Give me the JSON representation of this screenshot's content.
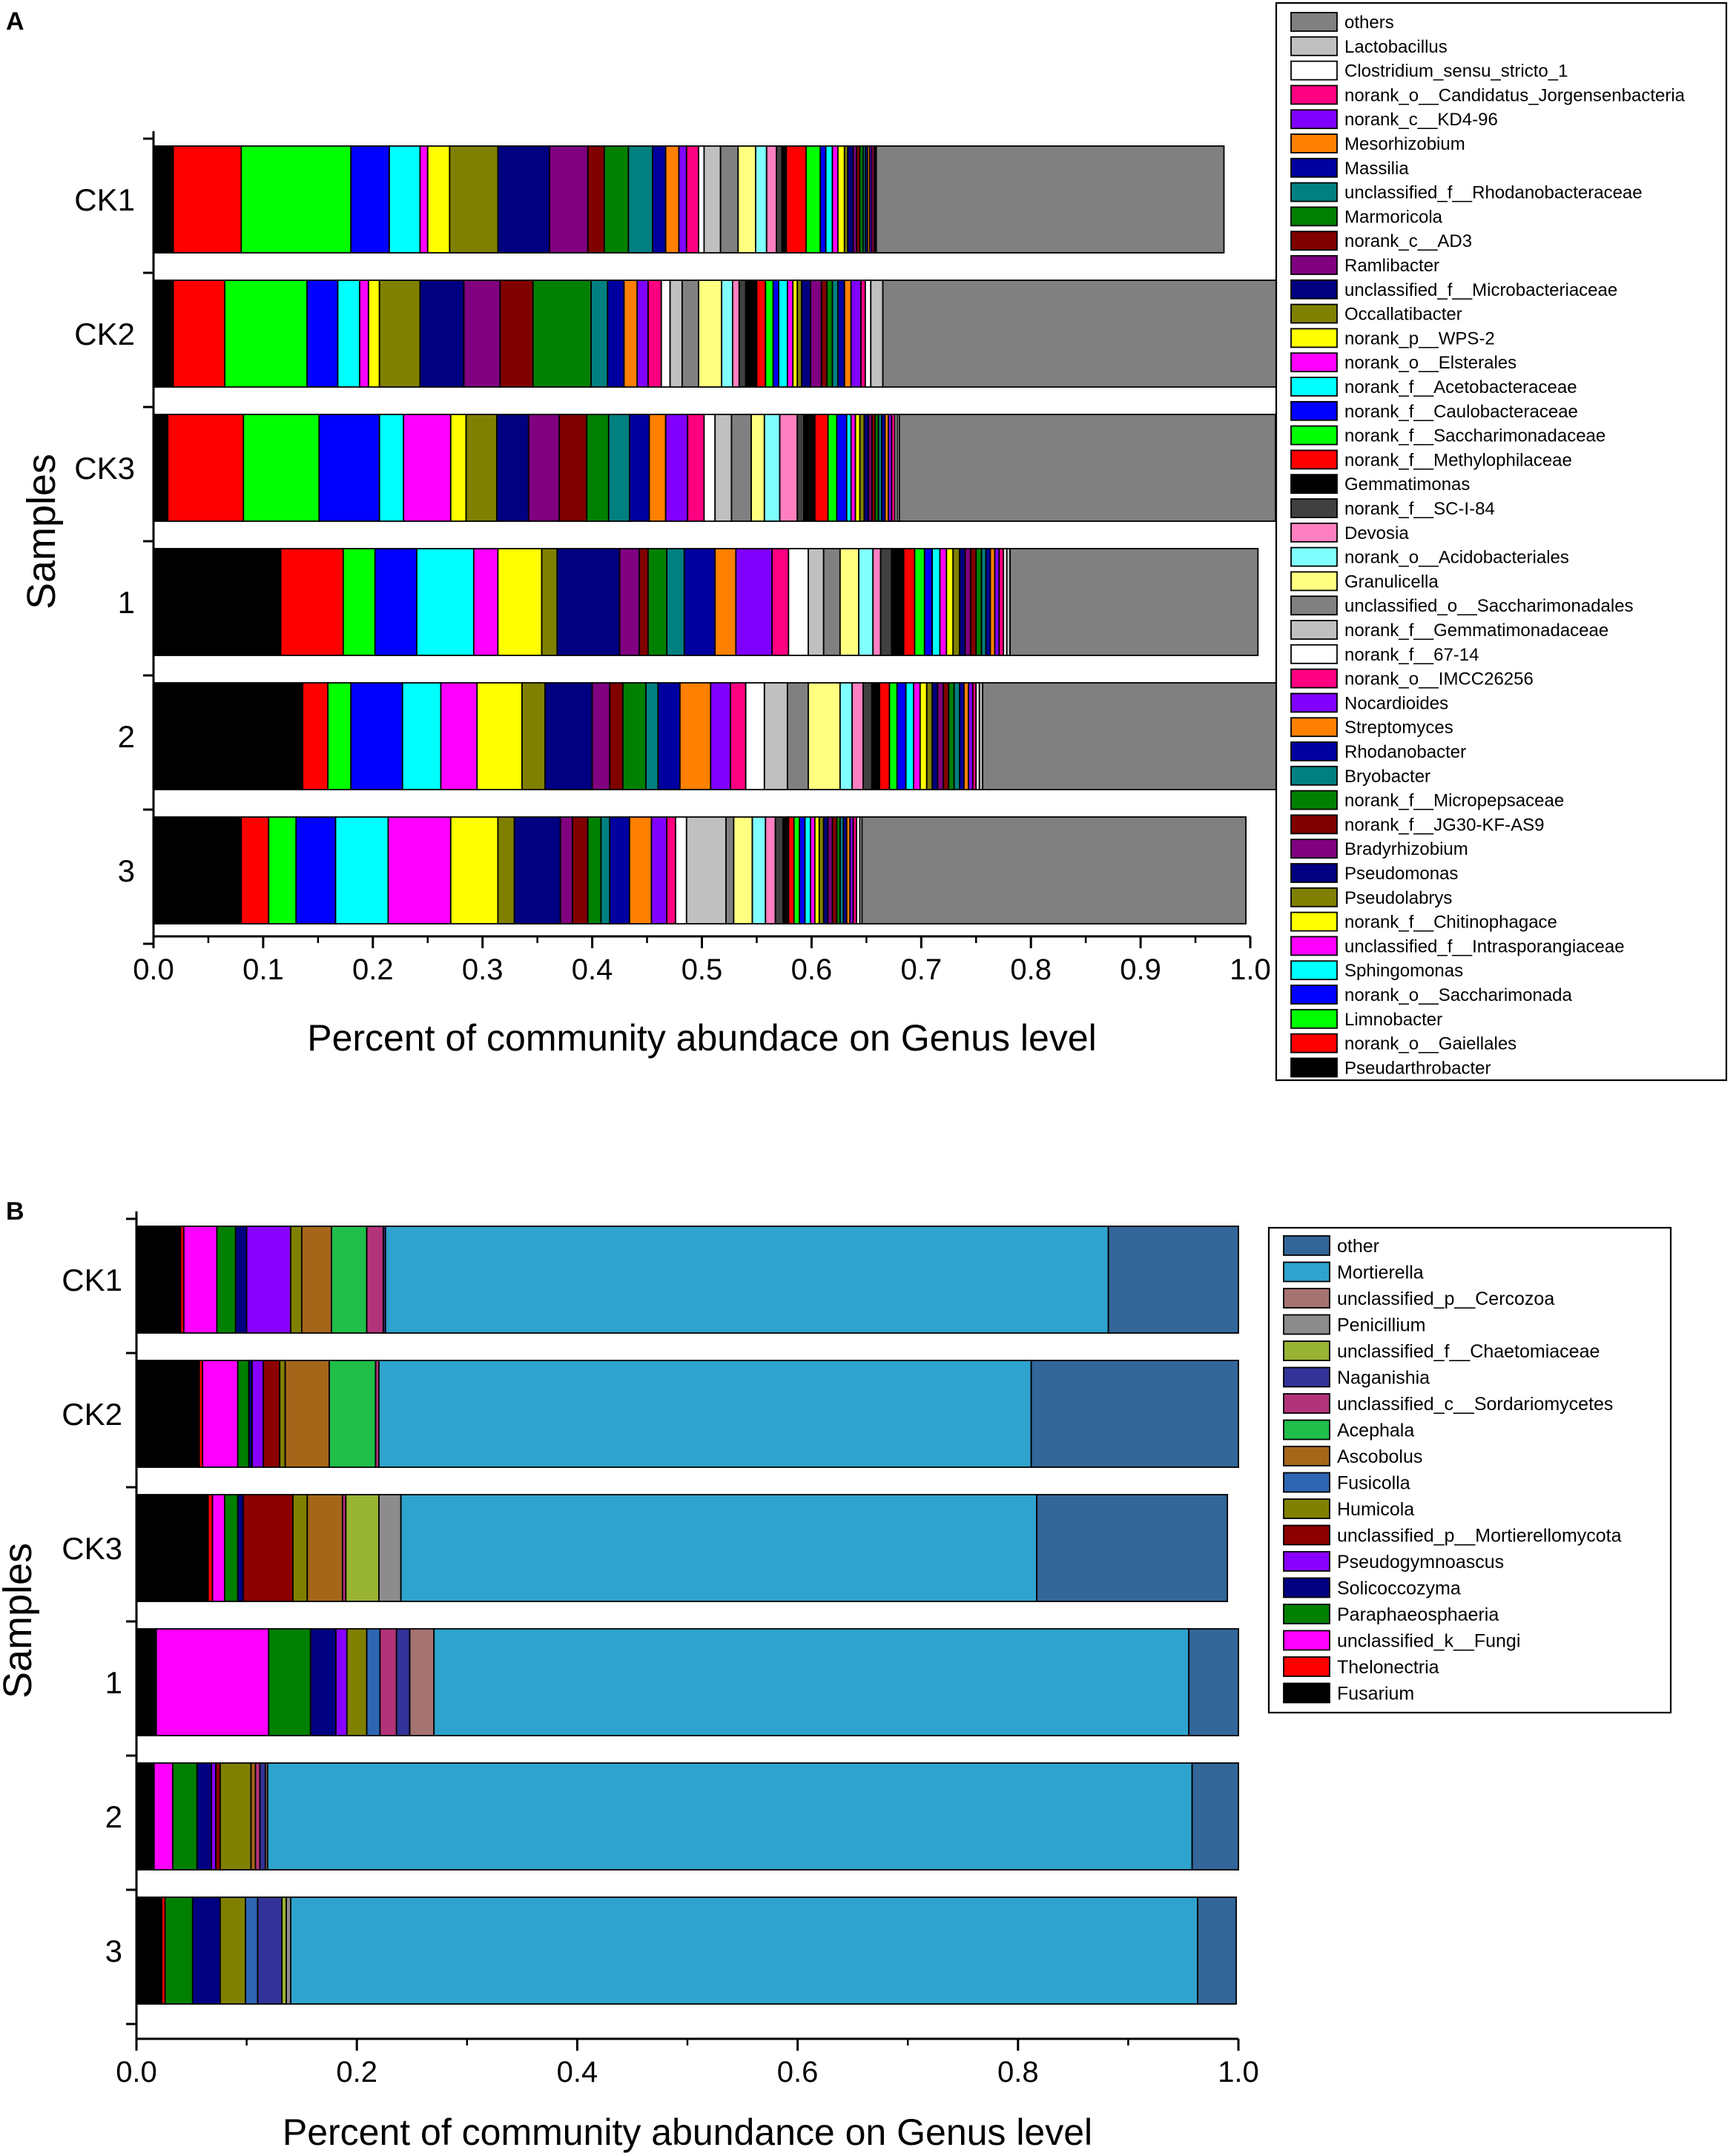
{
  "colors": {
    "others": "#808080",
    "Lactobacillus": "#c0c0c0",
    "Clostridium_sensu_stricto_1": "#ffffff",
    "norank_o__Candidatus_Jorgensenbacteria": "#ff0080",
    "norank_c__KD4-96": "#8000ff",
    "Mesorhizobium": "#ff8000",
    "Massilia": "#0000a0",
    "unclassified_f__Rhodanobacteraceae": "#008080",
    "Marmoricola": "#008000",
    "norank_c__AD3": "#800000",
    "Ramlibacter": "#800080",
    "unclassified_f__Microbacteriaceae": "#000080",
    "Occallatibacter": "#808000",
    "norank_p__WPS-2": "#ffff00",
    "norank_o__Elsterales": "#ff00ff",
    "norank_f__Acetobacteraceae": "#00ffff",
    "norank_f__Caulobacteraceae": "#0000ff",
    "norank_f__Saccharimonadaceae": "#00ff00",
    "norank_f__Methylophilaceae": "#ff0000",
    "Gemmatimonas": "#000000",
    "norank_f__SC-I-84": "#404040",
    "Devosia": "#ff80c0",
    "norank_o__Acidobacteriales": "#80ffff",
    "Granulicella": "#ffff80",
    "unclassified_o__Saccharimonadales": "#808080",
    "norank_f__Gemmatimonadaceae": "#c0c0c0",
    "norank_f__67-14": "#ffffff",
    "norank_o__IMCC26256": "#ff0080",
    "Nocardioides": "#8000ff",
    "Streptomyces": "#ff8000",
    "Rhodanobacter": "#0000a0",
    "Bryobacter": "#008080",
    "norank_f__Micropepsaceae": "#008000",
    "norank_f__JG30-KF-AS9": "#800000",
    "Bradyrhizobium": "#800080",
    "Pseudomonas": "#000080",
    "Pseudolabrys": "#808000",
    "norank_f__Chitinophagace": "#ffff00",
    "unclassified_f__Intrasporangiaceae": "#ff00ff",
    "Sphingomonas": "#00ffff",
    "norank_o__Saccharimonada": "#0000ff",
    "Limnobacter": "#00ff00",
    "norank_o__Gaiellales": "#ff0000",
    "Pseudarthrobacter": "#000000",
    "other": "#336699",
    "Mortierella": "#2ea3cd",
    "unclassified_p__Cercozoa": "#a67373",
    "Penicillium": "#8c8c8c",
    "unclassified_f__Chaetomiaceae": "#99b333",
    "Naganishia": "#333399",
    "unclassified_c__Sordariomycetes": "#b3337a",
    "Acephala": "#1fbf4a",
    "Ascobolus": "#a6661a",
    "Fusicolla": "#2e66b3",
    "Humicola": "#808000",
    "unclassified_p__Mortierellomycota": "#8c0000",
    "Pseudogymnoascus": "#8800ff",
    "Solicoccozyma": "#000080",
    "Paraphaeosphaeria": "#008000",
    "unclassified_k__Fungi": "#ff00ff",
    "Thelonectria": "#ff0000",
    "Fusarium": "#000000"
  },
  "chart_data": [
    {
      "type": "stacked_horizontal_bar",
      "panel_label": "A",
      "xlabel": "Percent of community abundace on Genus level",
      "ylabel": "Samples",
      "xlim": [
        0.0,
        1.0
      ],
      "x_ticks": [
        "0.0",
        "0.1",
        "0.2",
        "0.3",
        "0.4",
        "0.5",
        "0.6",
        "0.7",
        "0.8",
        "0.9",
        "1.0"
      ],
      "samples": [
        "CK1",
        "CK2",
        "CK3",
        "1",
        "2",
        "3"
      ],
      "legend": [
        "others",
        "Lactobacillus",
        "Clostridium_sensu_stricto_1",
        "norank_o__Candidatus_Jorgensenbacteria",
        "norank_c__KD4-96",
        "Mesorhizobium",
        "Massilia",
        "unclassified_f__Rhodanobacteraceae",
        "Marmoricola",
        "norank_c__AD3",
        "Ramlibacter",
        "unclassified_f__Microbacteriaceae",
        "Occallatibacter",
        "norank_p__WPS-2",
        "norank_o__Elsterales",
        "norank_f__Acetobacteraceae",
        "norank_f__Caulobacteraceae",
        "norank_f__Saccharimonadaceae",
        "norank_f__Methylophilaceae",
        "Gemmatimonas",
        "norank_f__SC-I-84",
        "Devosia",
        "norank_o__Acidobacteriales",
        "Granulicella",
        "unclassified_o__Saccharimonadales",
        "norank_f__Gemmatimonadaceae",
        "norank_f__67-14",
        "norank_o__IMCC26256",
        "Nocardioides",
        "Streptomyces",
        "Rhodanobacter",
        "Bryobacter",
        "norank_f__Micropepsaceae",
        "norank_f__JG30-KF-AS9",
        "Bradyrhizobium",
        "Pseudomonas",
        "Pseudolabrys",
        "norank_f__Chitinophagace",
        "unclassified_f__Intrasporangiaceae",
        "Sphingomonas",
        "norank_o__Saccharimonada",
        "Limnobacter",
        "norank_o__Gaiellales",
        "Pseudarthrobacter"
      ],
      "stack_order": [
        "Pseudarthrobacter",
        "norank_o__Gaiellales",
        "Limnobacter",
        "norank_o__Saccharimonada",
        "Sphingomonas",
        "unclassified_f__Intrasporangiaceae",
        "norank_f__Chitinophagace",
        "Pseudolabrys",
        "Pseudomonas",
        "Bradyrhizobium",
        "norank_f__JG30-KF-AS9",
        "norank_f__Micropepsaceae",
        "Bryobacter",
        "Rhodanobacter",
        "Streptomyces",
        "Nocardioides",
        "norank_o__IMCC26256",
        "norank_f__67-14",
        "norank_f__Gemmatimonadaceae",
        "unclassified_o__Saccharimonadales",
        "Granulicella",
        "norank_o__Acidobacteriales",
        "Devosia",
        "norank_f__SC-I-84",
        "Gemmatimonas",
        "norank_f__Methylophilaceae",
        "norank_f__Saccharimonadaceae",
        "norank_f__Caulobacteraceae",
        "norank_f__Acetobacteraceae",
        "norank_o__Elsterales",
        "norank_p__WPS-2",
        "Occallatibacter",
        "unclassified_f__Microbacteriaceae",
        "Ramlibacter",
        "norank_c__AD3",
        "Marmoricola",
        "unclassified_f__Rhodanobacteraceae",
        "Massilia",
        "Mesorhizobium",
        "norank_c__KD4-96",
        "norank_o__Candidatus_Jorgensenbacteria",
        "Clostridium_sensu_stricto_1",
        "Lactobacillus",
        "others"
      ],
      "values": {
        "CK1": [
          0.018,
          0.062,
          0.1,
          0.035,
          0.028,
          0.007,
          0.02,
          0.044,
          0.047,
          0.035,
          0.015,
          0.022,
          0.022,
          0.012,
          0.012,
          0.007,
          0.011,
          0.005,
          0.015,
          0.016,
          0.016,
          0.01,
          0.009,
          0.005,
          0.004,
          0.018,
          0.013,
          0.005,
          0.006,
          0.005,
          0.006,
          0.003,
          0.005,
          0.003,
          0.003,
          0.003,
          0.002,
          0.002,
          0.002,
          0.002,
          0.002,
          0.001,
          0.001,
          0.317
        ],
        "CK2": [
          0.018,
          0.047,
          0.075,
          0.028,
          0.02,
          0.008,
          0.01,
          0.037,
          0.04,
          0.033,
          0.03,
          0.053,
          0.015,
          0.015,
          0.012,
          0.01,
          0.012,
          0.008,
          0.011,
          0.015,
          0.021,
          0.01,
          0.006,
          0.006,
          0.01,
          0.008,
          0.007,
          0.005,
          0.008,
          0.005,
          0.004,
          0.004,
          0.008,
          0.01,
          0.005,
          0.005,
          0.005,
          0.006,
          0.006,
          0.009,
          0.004,
          0.005,
          0.011,
          0.371
        ],
        "CK3": [
          0.013,
          0.069,
          0.069,
          0.055,
          0.022,
          0.043,
          0.014,
          0.028,
          0.029,
          0.028,
          0.025,
          0.02,
          0.019,
          0.018,
          0.015,
          0.02,
          0.015,
          0.01,
          0.015,
          0.018,
          0.012,
          0.014,
          0.016,
          0.006,
          0.01,
          0.012,
          0.008,
          0.009,
          0.004,
          0.004,
          0.004,
          0.004,
          0.004,
          0.003,
          0.003,
          0.003,
          0.003,
          0.003,
          0.003,
          0.003,
          0.003,
          0.002,
          0.002,
          0.343
        ],
        "1": [
          0.116,
          0.057,
          0.029,
          0.038,
          0.052,
          0.022,
          0.04,
          0.014,
          0.057,
          0.018,
          0.008,
          0.017,
          0.016,
          0.028,
          0.019,
          0.033,
          0.015,
          0.018,
          0.014,
          0.015,
          0.017,
          0.013,
          0.007,
          0.01,
          0.011,
          0.01,
          0.009,
          0.007,
          0.007,
          0.006,
          0.006,
          0.006,
          0.005,
          0.005,
          0.005,
          0.005,
          0.004,
          0.004,
          0.004,
          0.004,
          0.004,
          0.003,
          0.003,
          0.226
        ],
        "2": [
          0.136,
          0.023,
          0.021,
          0.047,
          0.035,
          0.033,
          0.041,
          0.021,
          0.043,
          0.016,
          0.012,
          0.021,
          0.011,
          0.02,
          0.028,
          0.018,
          0.014,
          0.017,
          0.021,
          0.019,
          0.029,
          0.011,
          0.01,
          0.008,
          0.007,
          0.009,
          0.007,
          0.008,
          0.007,
          0.006,
          0.006,
          0.005,
          0.005,
          0.005,
          0.005,
          0.005,
          0.005,
          0.004,
          0.004,
          0.004,
          0.003,
          0.003,
          0.003,
          0.281
        ],
        "3": [
          0.08,
          0.025,
          0.025,
          0.036,
          0.048,
          0.057,
          0.043,
          0.015,
          0.042,
          0.011,
          0.014,
          0.012,
          0.008,
          0.018,
          0.02,
          0.014,
          0.008,
          0.01,
          0.036,
          0.007,
          0.017,
          0.012,
          0.009,
          0.007,
          0.005,
          0.005,
          0.005,
          0.005,
          0.005,
          0.004,
          0.004,
          0.004,
          0.004,
          0.004,
          0.004,
          0.003,
          0.003,
          0.003,
          0.003,
          0.003,
          0.003,
          0.003,
          0.002,
          0.35
        ]
      }
    },
    {
      "type": "stacked_horizontal_bar",
      "panel_label": "B",
      "xlabel": "Percent of community abundance on Genus level",
      "ylabel": "Samples",
      "xlim": [
        0.0,
        1.0
      ],
      "x_ticks": [
        "0.0",
        "0.2",
        "0.4",
        "0.6",
        "0.8",
        "1.0"
      ],
      "samples": [
        "CK1",
        "CK2",
        "CK3",
        "1",
        "2",
        "3"
      ],
      "legend": [
        "other",
        "Mortierella",
        "unclassified_p__Cercozoa",
        "Penicillium",
        "unclassified_f__Chaetomiaceae",
        "Naganishia",
        "unclassified_c__Sordariomycetes",
        "Acephala",
        "Ascobolus",
        "Fusicolla",
        "Humicola",
        "unclassified_p__Mortierellomycota",
        "Pseudogymnoascus",
        "Solicoccozyma",
        "Paraphaeosphaeria",
        "unclassified_k__Fungi",
        "Thelonectria",
        "Fusarium"
      ],
      "stack_order": [
        "Fusarium",
        "Thelonectria",
        "unclassified_k__Fungi",
        "Paraphaeosphaeria",
        "Solicoccozyma",
        "Pseudogymnoascus",
        "unclassified_p__Mortierellomycota",
        "Humicola",
        "Fusicolla",
        "Ascobolus",
        "Acephala",
        "unclassified_c__Sordariomycetes",
        "Naganishia",
        "unclassified_f__Chaetomiaceae",
        "Penicillium",
        "unclassified_p__Cercozoa",
        "Mortierella",
        "other"
      ],
      "values": {
        "CK1": [
          0.04,
          0.003,
          0.03,
          0.017,
          0.01,
          0.04,
          0.0,
          0.01,
          0.0,
          0.027,
          0.032,
          0.015,
          0.002,
          0.0,
          0.0,
          0.0,
          0.656,
          0.118
        ],
        "CK2": [
          0.057,
          0.003,
          0.032,
          0.01,
          0.003,
          0.01,
          0.015,
          0.005,
          0.0,
          0.04,
          0.042,
          0.003,
          0.0,
          0.0,
          0.0,
          0.0,
          0.592,
          0.188
        ],
        "CK3": [
          0.065,
          0.004,
          0.011,
          0.012,
          0.005,
          0.0,
          0.045,
          0.013,
          0.0,
          0.032,
          0.0,
          0.003,
          0.0,
          0.03,
          0.02,
          0.0,
          0.577,
          0.173
        ],
        "1": [
          0.018,
          0.0,
          0.102,
          0.038,
          0.023,
          0.01,
          0.0,
          0.018,
          0.012,
          0.0,
          0.0,
          0.015,
          0.012,
          0.0,
          0.0,
          0.022,
          0.685,
          0.045
        ],
        "2": [
          0.016,
          0.0,
          0.017,
          0.022,
          0.013,
          0.004,
          0.004,
          0.028,
          0.0,
          0.004,
          0.0,
          0.004,
          0.005,
          0.0,
          0.0,
          0.002,
          0.839,
          0.042
        ],
        "3": [
          0.023,
          0.003,
          0.0,
          0.025,
          0.025,
          0.0,
          0.0,
          0.023,
          0.011,
          0.0,
          0.0,
          0.0,
          0.022,
          0.004,
          0.004,
          0.0,
          0.823,
          0.035
        ]
      }
    }
  ]
}
